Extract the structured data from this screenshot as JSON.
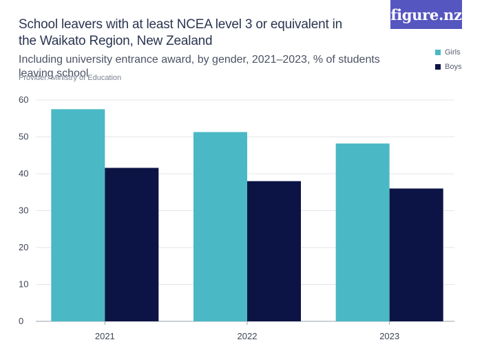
{
  "header": {
    "title": "School leavers with at least NCEA level 3 or equivalent in the Waikato Region, New Zealand",
    "subtitle": "Including university entrance award, by gender, 2021–2023, % of students leaving school",
    "provider": "Provider: Ministry of Education",
    "logo_text": "figure.nz"
  },
  "chart_data": {
    "type": "bar",
    "categories": [
      "2021",
      "2022",
      "2023"
    ],
    "series": [
      {
        "name": "Girls",
        "color": "#4ab8c5",
        "values": [
          57.5,
          51.3,
          48.2
        ]
      },
      {
        "name": "Boys",
        "color": "#0c1445",
        "values": [
          41.6,
          38.0,
          36.0
        ]
      }
    ],
    "ylim": [
      0,
      60
    ],
    "yticks": [
      0,
      10,
      20,
      30,
      40,
      50,
      60
    ],
    "grid": true,
    "legend": "top-right",
    "title": "School leavers with at least NCEA level 3 or equivalent in the Waikato Region, New Zealand",
    "xlabel": "",
    "ylabel": ""
  }
}
